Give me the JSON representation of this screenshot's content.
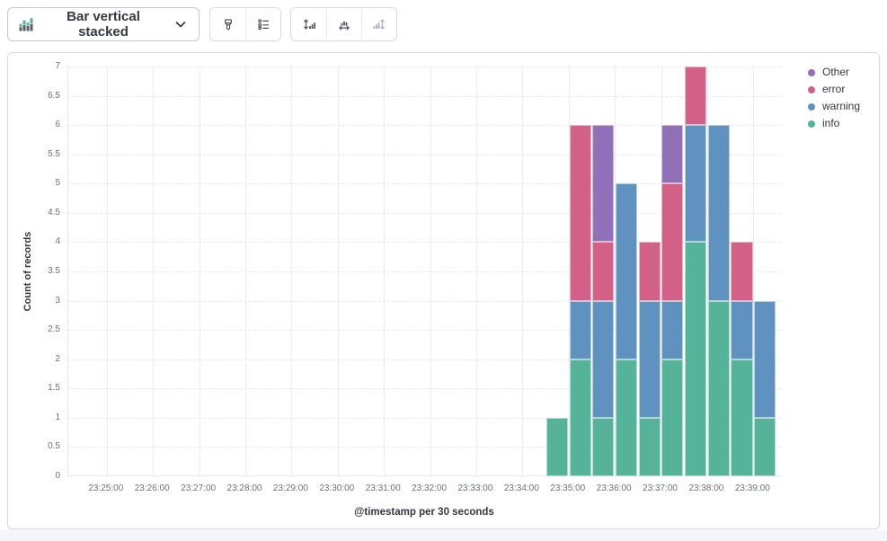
{
  "toolbar": {
    "chart_switcher": {
      "label": "Bar vertical stacked",
      "icon": "bar-vertical-stacked-icon"
    },
    "style_buttons": [
      {
        "icon": "brush-icon",
        "name": "visual-options"
      },
      {
        "icon": "legend-list-icon",
        "name": "legend-settings"
      }
    ],
    "axis_buttons": [
      {
        "icon": "left-axis-icon",
        "name": "left-axis",
        "disabled": false
      },
      {
        "icon": "bottom-axis-icon",
        "name": "bottom-axis",
        "disabled": false
      },
      {
        "icon": "right-axis-icon",
        "name": "right-axis",
        "disabled": true
      }
    ]
  },
  "chart_data": {
    "type": "bar",
    "stacked": true,
    "orientation": "vertical",
    "title": "",
    "xlabel": "@timestamp per 30 seconds",
    "ylabel": "Count of records",
    "ylim": [
      0,
      7
    ],
    "y_ticks": [
      0,
      0.5,
      1,
      1.5,
      2,
      2.5,
      3,
      3.5,
      4,
      4.5,
      5,
      5.5,
      6,
      6.5,
      7
    ],
    "x_domain": [
      "23:24:10",
      "23:39:37"
    ],
    "x_ticks": [
      "23:25:00",
      "23:26:00",
      "23:27:00",
      "23:28:00",
      "23:29:00",
      "23:30:00",
      "23:31:00",
      "23:32:00",
      "23:33:00",
      "23:34:00",
      "23:35:00",
      "23:36:00",
      "23:37:00",
      "23:38:00",
      "23:39:00"
    ],
    "bucket_seconds": 30,
    "grid": true,
    "legend_position": "right",
    "categories": [
      "23:34:30",
      "23:35:00",
      "23:35:30",
      "23:36:00",
      "23:36:30",
      "23:37:00",
      "23:37:30",
      "23:38:00",
      "23:38:30",
      "23:39:00"
    ],
    "series": [
      {
        "name": "info",
        "color": "#54B399",
        "values": [
          1,
          2,
          1,
          2,
          1,
          2,
          4,
          3,
          2,
          1
        ]
      },
      {
        "name": "warning",
        "color": "#6092C0",
        "values": [
          0,
          1,
          2,
          3,
          2,
          1,
          2,
          3,
          1,
          2
        ]
      },
      {
        "name": "error",
        "color": "#D36086",
        "values": [
          0,
          3,
          1,
          0,
          1,
          2,
          1,
          0,
          1,
          0
        ]
      },
      {
        "name": "Other",
        "color": "#9170B8",
        "values": [
          0,
          0,
          2,
          0,
          0,
          1,
          0,
          0,
          0,
          0
        ]
      }
    ],
    "legend": [
      {
        "label": "Other",
        "color": "#9170B8"
      },
      {
        "label": "error",
        "color": "#D36086"
      },
      {
        "label": "warning",
        "color": "#6092C0"
      },
      {
        "label": "info",
        "color": "#54B399"
      }
    ]
  },
  "colors": {
    "text_dark": "#343741",
    "tick_text": "#69707d",
    "panel_border": "#d3dae6",
    "gridline": "#e6eaf1",
    "disabled_icon": "#a6afc0"
  }
}
